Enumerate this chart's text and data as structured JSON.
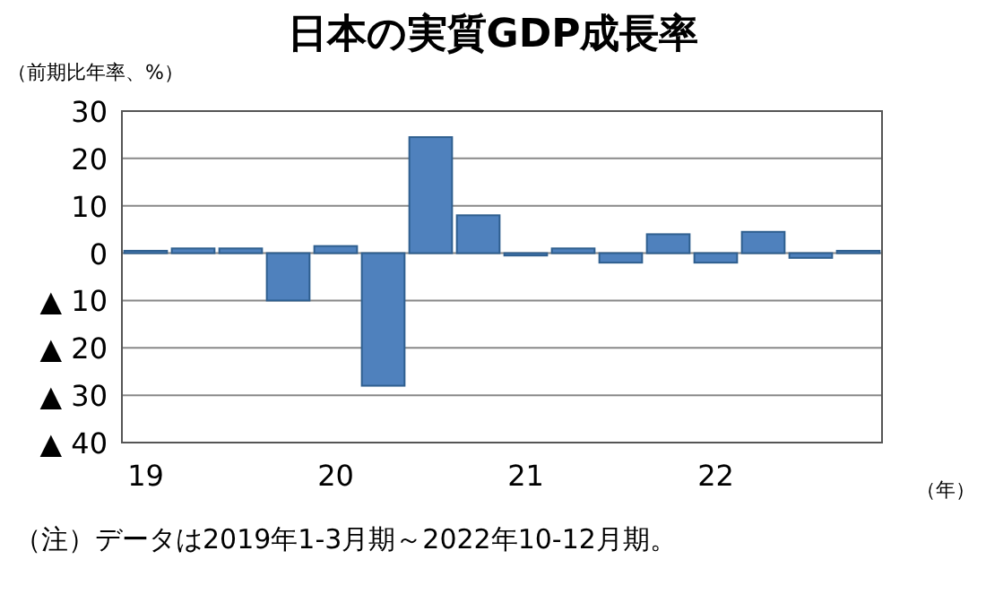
{
  "chart_data": {
    "type": "bar",
    "title": "日本の実質GDP成長率",
    "ylabel": "（前期比年率、%）",
    "xlabel": "（年）",
    "categories": [
      "19",
      null,
      null,
      null,
      "20",
      null,
      null,
      null,
      "21",
      null,
      null,
      null,
      "22",
      null,
      null,
      null
    ],
    "values": [
      0.5,
      1,
      1,
      -10,
      1.5,
      -28,
      24.5,
      8,
      -0.5,
      1,
      -2,
      4,
      -2,
      4.5,
      -1,
      0.5
    ],
    "color": "#4f81bd",
    "ylim": [
      -40,
      30
    ],
    "yticks": [
      {
        "value": 30,
        "label": "30"
      },
      {
        "value": 20,
        "label": "20"
      },
      {
        "value": 10,
        "label": "10"
      },
      {
        "value": 0,
        "label": "0"
      },
      {
        "value": -10,
        "label": "▲ 10"
      },
      {
        "value": -20,
        "label": "▲ 20"
      },
      {
        "value": -30,
        "label": "▲ 30"
      },
      {
        "value": -40,
        "label": "▲ 40"
      }
    ],
    "grid": "y",
    "annotations": [
      "（注）データは2019年1-3月期～2022年10-12月期。"
    ]
  }
}
